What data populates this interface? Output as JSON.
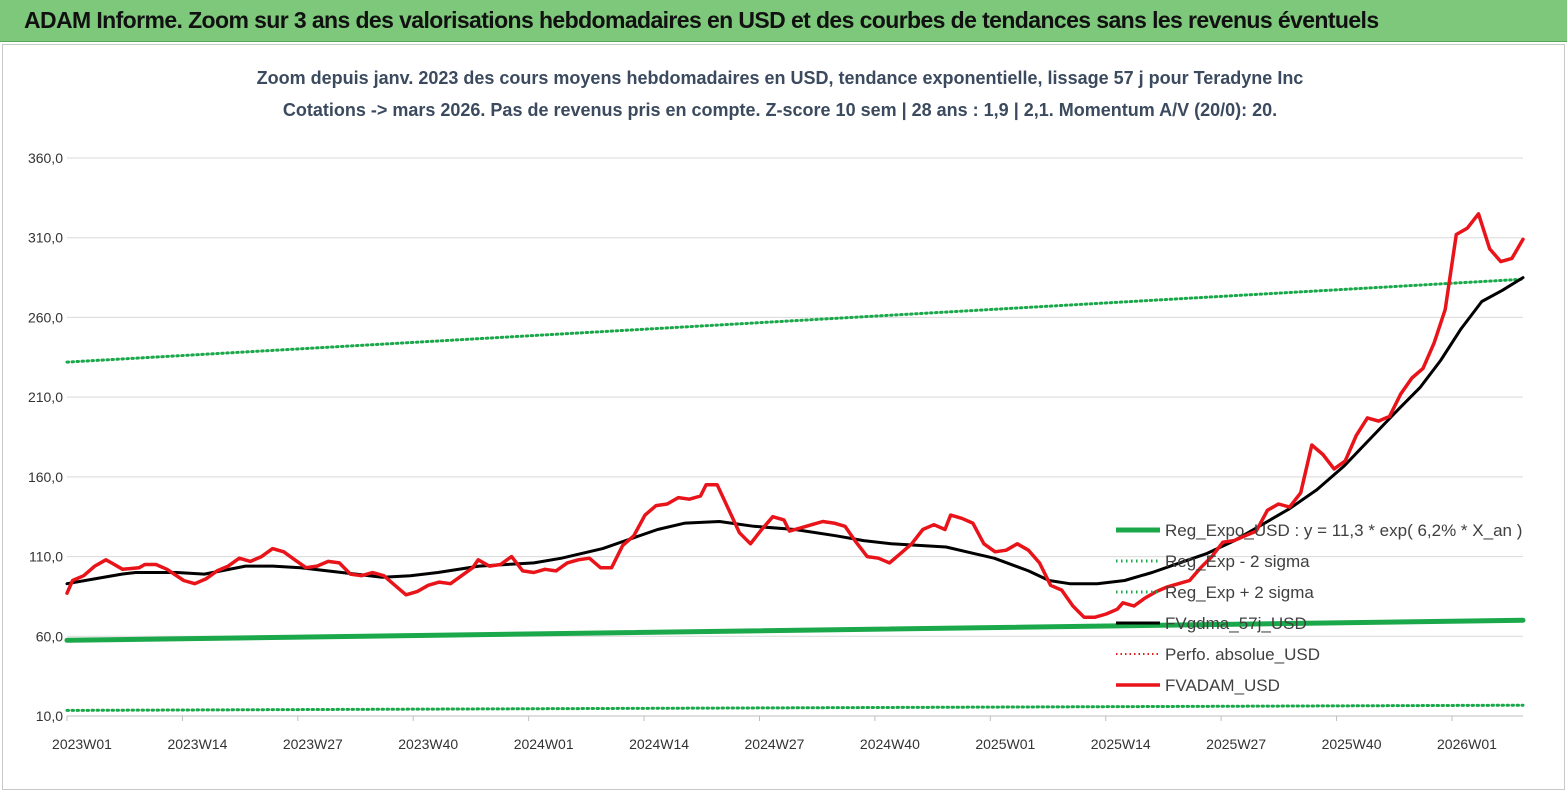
{
  "banner": {
    "title": "ADAM Informe. Zoom sur 3 ans des valorisations hebdomadaires en USD et des courbes de tendances sans les revenus éventuels"
  },
  "chart_data": {
    "type": "line",
    "title": "Zoom depuis janv. 2023 des cours moyens hebdomadaires en USD, tendance exponentielle, lissage 57 j pour Teradyne Inc",
    "subtitle": "Cotations -> mars 2026. Pas de revenus pris en compte. Z-score 10 sem | 28 ans : 1,9 | 2,1. Momentum A/V (20/0): 20.",
    "x_tick_labels": [
      "2023W01",
      "2023W14",
      "2023W27",
      "2023W40",
      "2024W01",
      "2024W14",
      "2024W27",
      "2024W40",
      "2025W01",
      "2025W14",
      "2025W27",
      "2025W40",
      "2026W01"
    ],
    "y_tick_labels": [
      "10,0",
      "60,0",
      "110,0",
      "160,0",
      "210,0",
      "260,0",
      "310,0",
      "360,0"
    ],
    "y_ticks": [
      10,
      60,
      110,
      160,
      210,
      260,
      310,
      360
    ],
    "ylim": [
      10,
      370
    ],
    "x_range_weeks": [
      0,
      166
    ],
    "grid": true,
    "legend_position": "right-middle",
    "colors": {
      "reg": "#1aa84a",
      "band": "#1aa84a",
      "gdma": "#000000",
      "perf": "#e0201b",
      "price": "#e8141a"
    },
    "series": [
      {
        "name": "Reg_Expo_USD : y = 11,3 * exp( 6,2% *  X_an )",
        "key": "reg",
        "style": "solid-thick",
        "points": [
          [
            0,
            57.5
          ],
          [
            166,
            70.0
          ]
        ]
      },
      {
        "name": "Reg_Exp - 2 sigma",
        "key": "band",
        "style": "dotted",
        "points": [
          [
            0,
            13.5
          ],
          [
            166,
            16.8
          ]
        ]
      },
      {
        "name": "Reg_Exp + 2 sigma",
        "key": "band",
        "style": "dotted",
        "points": [
          [
            0,
            232
          ],
          [
            166,
            284
          ]
        ]
      },
      {
        "name": "FVgdma_57j_USD",
        "key": "gdma",
        "style": "solid",
        "points": [
          [
            0,
            93
          ],
          [
            4,
            96
          ],
          [
            8,
            99
          ],
          [
            10,
            100
          ],
          [
            16,
            100
          ],
          [
            20,
            99
          ],
          [
            26,
            104
          ],
          [
            30,
            104
          ],
          [
            34,
            103
          ],
          [
            40,
            100
          ],
          [
            46,
            97
          ],
          [
            50,
            98
          ],
          [
            54,
            100
          ],
          [
            60,
            104
          ],
          [
            64,
            105
          ],
          [
            68,
            106
          ],
          [
            72,
            109
          ],
          [
            78,
            115
          ],
          [
            82,
            121
          ],
          [
            86,
            127
          ],
          [
            90,
            131
          ],
          [
            95,
            132
          ],
          [
            100,
            129
          ],
          [
            106,
            127
          ],
          [
            112,
            123
          ],
          [
            116,
            120
          ],
          [
            120,
            118
          ],
          [
            124,
            117
          ],
          [
            128,
            116
          ],
          [
            132,
            112
          ],
          [
            135,
            109
          ],
          [
            140,
            101
          ],
          [
            143,
            95
          ],
          [
            146,
            93
          ],
          [
            150,
            93
          ],
          [
            154,
            95
          ],
          [
            158,
            100
          ],
          [
            162,
            106
          ],
          [
            166,
            112
          ],
          [
            170,
            120
          ],
          [
            174,
            130
          ],
          [
            178,
            140
          ],
          [
            182,
            152
          ],
          [
            186,
            167
          ],
          [
            190,
            185
          ],
          [
            194,
            203
          ],
          [
            197,
            216
          ],
          [
            200,
            233
          ],
          [
            203,
            253
          ],
          [
            206,
            270
          ],
          [
            209,
            277
          ],
          [
            212,
            285
          ]
        ]
      },
      {
        "name": "Perfo. absolue_USD",
        "key": "perf",
        "style": "dotted",
        "points": []
      },
      {
        "name": "FVADAM_USD",
        "key": "price",
        "style": "solid-thick",
        "points": [
          [
            0,
            87
          ],
          [
            1,
            95
          ],
          [
            3,
            98
          ],
          [
            5,
            104
          ],
          [
            7,
            108
          ],
          [
            8,
            106
          ],
          [
            10,
            102
          ],
          [
            13,
            103
          ],
          [
            14,
            105
          ],
          [
            16,
            105
          ],
          [
            18,
            102
          ],
          [
            21,
            95
          ],
          [
            23,
            93
          ],
          [
            25,
            96
          ],
          [
            27,
            101
          ],
          [
            29,
            104
          ],
          [
            31,
            109
          ],
          [
            33,
            107
          ],
          [
            35,
            110
          ],
          [
            37,
            115
          ],
          [
            39,
            113
          ],
          [
            41,
            108
          ],
          [
            43,
            103
          ],
          [
            45,
            104
          ],
          [
            47,
            107
          ],
          [
            49,
            106
          ],
          [
            51,
            99
          ],
          [
            53,
            98
          ],
          [
            55,
            100
          ],
          [
            57,
            98
          ],
          [
            59,
            92
          ],
          [
            61,
            86
          ],
          [
            63,
            88
          ],
          [
            65,
            92
          ],
          [
            67,
            94
          ],
          [
            69,
            93
          ],
          [
            71,
            98
          ],
          [
            73,
            103
          ],
          [
            74,
            108
          ],
          [
            76,
            104
          ],
          [
            78,
            105
          ],
          [
            80,
            110
          ],
          [
            82,
            101
          ],
          [
            84,
            100
          ],
          [
            86,
            102
          ],
          [
            88,
            101
          ],
          [
            90,
            106
          ],
          [
            92,
            108
          ],
          [
            94,
            109
          ],
          [
            96,
            103
          ],
          [
            98,
            103
          ],
          [
            100,
            117
          ],
          [
            102,
            123
          ],
          [
            104,
            136
          ],
          [
            106,
            142
          ],
          [
            108,
            143
          ],
          [
            110,
            147
          ],
          [
            112,
            146
          ],
          [
            114,
            148
          ],
          [
            115,
            155
          ],
          [
            117,
            155
          ],
          [
            119,
            140
          ],
          [
            121,
            125
          ],
          [
            123,
            118
          ],
          [
            125,
            127
          ],
          [
            127,
            135
          ],
          [
            129,
            133
          ],
          [
            130,
            126
          ],
          [
            132,
            128
          ],
          [
            134,
            130
          ],
          [
            136,
            132
          ],
          [
            138,
            131
          ],
          [
            140,
            129
          ],
          [
            142,
            119
          ],
          [
            144,
            110
          ],
          [
            146,
            109
          ],
          [
            148,
            106
          ],
          [
            150,
            112
          ],
          [
            152,
            118
          ],
          [
            154,
            127
          ],
          [
            156,
            130
          ],
          [
            158,
            127
          ],
          [
            159,
            136
          ],
          [
            161,
            134
          ],
          [
            163,
            131
          ],
          [
            165,
            118
          ],
          [
            167,
            113
          ],
          [
            169,
            114
          ],
          [
            171,
            118
          ],
          [
            173,
            114
          ],
          [
            175,
            106
          ],
          [
            177,
            92
          ],
          [
            179,
            89
          ],
          [
            181,
            79
          ],
          [
            183,
            72
          ],
          [
            185,
            72
          ],
          [
            187,
            74
          ],
          [
            189,
            77
          ],
          [
            190,
            81
          ],
          [
            192,
            79
          ],
          [
            194,
            84
          ],
          [
            196,
            88
          ],
          [
            198,
            91
          ],
          [
            200,
            93
          ],
          [
            202,
            95
          ],
          [
            204,
            103
          ],
          [
            206,
            110
          ],
          [
            208,
            119
          ],
          [
            210,
            120
          ],
          [
            212,
            123
          ],
          [
            214,
            126
          ],
          [
            216,
            139
          ],
          [
            218,
            143
          ],
          [
            220,
            141
          ],
          [
            222,
            150
          ],
          [
            224,
            180
          ],
          [
            226,
            174
          ],
          [
            228,
            165
          ],
          [
            230,
            170
          ],
          [
            232,
            186
          ],
          [
            234,
            197
          ],
          [
            236,
            195
          ],
          [
            238,
            198
          ],
          [
            240,
            212
          ],
          [
            242,
            222
          ],
          [
            244,
            228
          ],
          [
            246,
            244
          ],
          [
            248,
            265
          ],
          [
            250,
            312
          ],
          [
            252,
            316
          ],
          [
            254,
            325
          ],
          [
            256,
            303
          ],
          [
            258,
            295
          ],
          [
            260,
            297
          ],
          [
            262,
            309
          ]
        ]
      }
    ]
  }
}
